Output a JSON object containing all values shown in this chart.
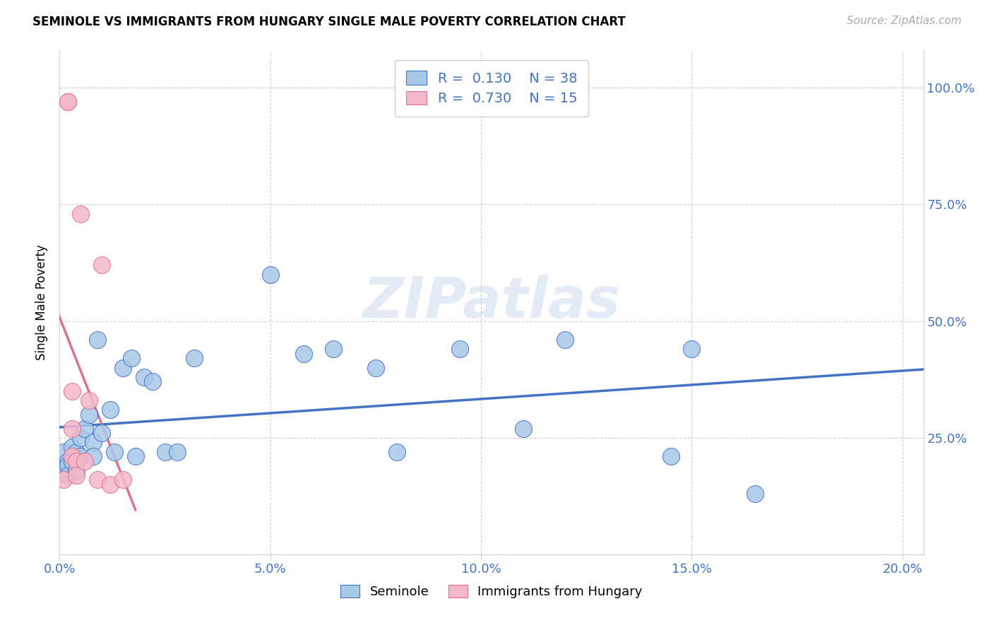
{
  "title": "SEMINOLE VS IMMIGRANTS FROM HUNGARY SINGLE MALE POVERTY CORRELATION CHART",
  "source": "Source: ZipAtlas.com",
  "ylabel_text": "Single Male Poverty",
  "xlim": [
    0.0,
    0.205
  ],
  "ylim": [
    0.0,
    1.08
  ],
  "xtick_labels": [
    "0.0%",
    "5.0%",
    "10.0%",
    "15.0%",
    "20.0%"
  ],
  "xtick_vals": [
    0.0,
    0.05,
    0.1,
    0.15,
    0.2
  ],
  "ytick_labels": [
    "25.0%",
    "50.0%",
    "75.0%",
    "100.0%"
  ],
  "ytick_vals": [
    0.25,
    0.5,
    0.75,
    1.0
  ],
  "seminole_color": "#a8c8e8",
  "hungary_color": "#f4b8c8",
  "trend_seminole_color": "#4472c4",
  "trend_hungary_color": "#e07090",
  "R_seminole": 0.13,
  "N_seminole": 38,
  "R_hungary": 0.73,
  "N_hungary": 15,
  "watermark": "ZIPatlas",
  "seminole_x": [
    0.001,
    0.001,
    0.002,
    0.002,
    0.002,
    0.003,
    0.003,
    0.004,
    0.004,
    0.005,
    0.005,
    0.006,
    0.007,
    0.008,
    0.008,
    0.009,
    0.01,
    0.012,
    0.013,
    0.015,
    0.017,
    0.018,
    0.02,
    0.022,
    0.025,
    0.028,
    0.032,
    0.05,
    0.058,
    0.065,
    0.075,
    0.08,
    0.095,
    0.11,
    0.12,
    0.145,
    0.15,
    0.165
  ],
  "seminole_y": [
    0.22,
    0.18,
    0.2,
    0.19,
    0.17,
    0.23,
    0.2,
    0.22,
    0.18,
    0.25,
    0.21,
    0.27,
    0.3,
    0.24,
    0.21,
    0.46,
    0.26,
    0.31,
    0.22,
    0.4,
    0.42,
    0.21,
    0.38,
    0.37,
    0.22,
    0.22,
    0.42,
    0.6,
    0.43,
    0.44,
    0.4,
    0.22,
    0.44,
    0.27,
    0.46,
    0.21,
    0.44,
    0.13
  ],
  "hungary_x": [
    0.001,
    0.002,
    0.002,
    0.003,
    0.003,
    0.003,
    0.004,
    0.004,
    0.005,
    0.006,
    0.007,
    0.009,
    0.01,
    0.012,
    0.015
  ],
  "hungary_y": [
    0.16,
    0.97,
    0.97,
    0.35,
    0.27,
    0.21,
    0.2,
    0.17,
    0.73,
    0.2,
    0.33,
    0.16,
    0.62,
    0.15,
    0.16
  ]
}
